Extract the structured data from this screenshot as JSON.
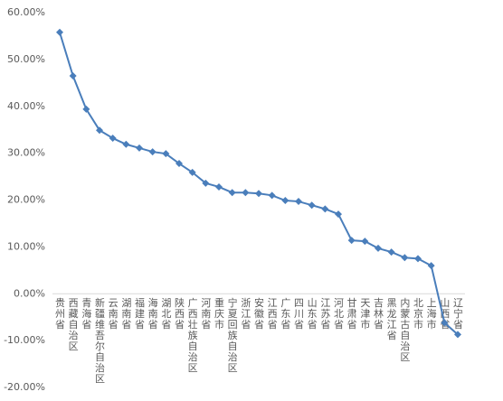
{
  "chart_data": {
    "type": "line",
    "categories": [
      "贵州省",
      "西藏自治区",
      "青海省",
      "新疆维吾尔自治区",
      "云南省",
      "湖南省",
      "福建省",
      "海南省",
      "湖北省",
      "陕西省",
      "广西壮族自治区",
      "河南省",
      "重庆市",
      "宁夏回族自治区",
      "浙江省",
      "安徽省",
      "江西省",
      "广东省",
      "四川省",
      "山东省",
      "江苏省",
      "河北省",
      "甘肃省",
      "天津市",
      "吉林省",
      "黑龙江省",
      "内蒙古自治区",
      "北京市",
      "上海市",
      "山西省",
      "辽宁省"
    ],
    "values": [
      55.8,
      46.5,
      39.4,
      34.9,
      33.2,
      31.9,
      31.1,
      30.3,
      29.9,
      27.8,
      25.9,
      23.6,
      22.8,
      21.6,
      21.6,
      21.4,
      21.0,
      19.9,
      19.7,
      18.9,
      18.1,
      17.0,
      11.4,
      11.2,
      9.7,
      8.9,
      7.7,
      7.5,
      6.0,
      -6.2,
      -8.7
    ],
    "color": "#4a7ebb",
    "ylim": [
      -20,
      60
    ],
    "yticks": [
      {
        "value": -20,
        "label": "-20.00%"
      },
      {
        "value": -10,
        "label": "-10.00%"
      },
      {
        "value": 0,
        "label": "0.00%"
      },
      {
        "value": 10,
        "label": "10.00%"
      },
      {
        "value": 20,
        "label": "20.00%"
      },
      {
        "value": 30,
        "label": "30.00%"
      },
      {
        "value": 40,
        "label": "40.00%"
      },
      {
        "value": 50,
        "label": "50.00%"
      },
      {
        "value": 60,
        "label": "60.00%"
      }
    ]
  }
}
